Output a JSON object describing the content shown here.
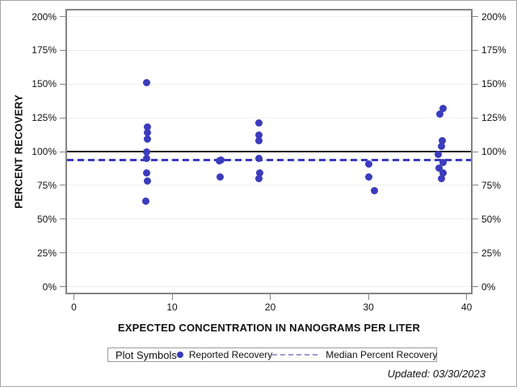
{
  "figure": {
    "footer": "Updated: 03/30/2023"
  },
  "chart_data": {
    "type": "scatter",
    "title": "",
    "xlabel": "EXPECTED CONCENTRATION IN NANOGRAMS PER LITER",
    "ylabel": "PERCENT RECOVERY",
    "xlim": [
      0,
      40
    ],
    "ylim": [
      0,
      200
    ],
    "grid": "horizontal",
    "x_ticks": [
      0,
      10,
      20,
      30,
      40
    ],
    "x_tick_labels": [
      "0",
      "10",
      "20",
      "30",
      "40"
    ],
    "y_ticks": [
      0,
      25,
      50,
      75,
      100,
      125,
      150,
      175,
      200
    ],
    "y_tick_labels": [
      "0%",
      "25%",
      "50%",
      "75%",
      "100%",
      "125%",
      "150%",
      "175%",
      "200%"
    ],
    "y_axis_mirrored": true,
    "series": [
      {
        "name": "Reported Recovery",
        "marker": "filled-circle",
        "color": "#3b3bbd",
        "points": [
          [
            7.4,
            151
          ],
          [
            7.5,
            118
          ],
          [
            7.5,
            114
          ],
          [
            7.5,
            109
          ],
          [
            7.4,
            100
          ],
          [
            7.4,
            95
          ],
          [
            7.4,
            84
          ],
          [
            7.5,
            78
          ],
          [
            7.3,
            63
          ],
          [
            14.8,
            93
          ],
          [
            15.0,
            94
          ],
          [
            14.9,
            81
          ],
          [
            18.8,
            121
          ],
          [
            18.8,
            112
          ],
          [
            18.8,
            108
          ],
          [
            18.8,
            95
          ],
          [
            18.9,
            84
          ],
          [
            18.8,
            80
          ],
          [
            30.0,
            91
          ],
          [
            30.0,
            81
          ],
          [
            30.6,
            71
          ],
          [
            37.6,
            132
          ],
          [
            37.3,
            128
          ],
          [
            37.5,
            108
          ],
          [
            37.4,
            104
          ],
          [
            37.1,
            98
          ],
          [
            37.6,
            92
          ],
          [
            37.2,
            88
          ],
          [
            37.6,
            84
          ],
          [
            37.4,
            80
          ]
        ]
      }
    ],
    "reference_lines": [
      {
        "name": "100% reference",
        "value": 100,
        "style": "solid",
        "color": "#1a1a1a"
      },
      {
        "name": "Median Percent Recovery",
        "value": 94,
        "style": "dashed",
        "color": "#3b3bbd"
      }
    ],
    "legend": {
      "position": "bottom",
      "title": "Plot Symbols",
      "entries": [
        {
          "label": "Reported Recovery",
          "marker": "dot"
        },
        {
          "label": "Median Percent Recovery",
          "marker": "dashed-line"
        }
      ]
    },
    "colors": {
      "marker": "#3b3bbd",
      "median_line": "#3b3bbd",
      "reference_line": "#1a1a1a",
      "gridline": "#efefef",
      "frame": "#848484",
      "legend_dash": "#9a9ad0"
    }
  }
}
